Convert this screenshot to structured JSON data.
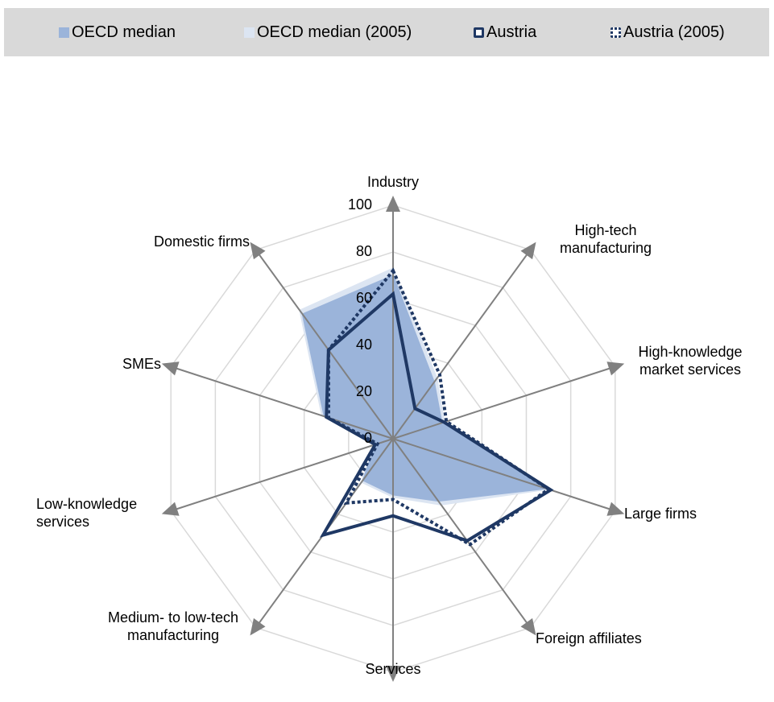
{
  "chart_data": {
    "type": "radar",
    "categories": [
      "Industry",
      "High-tech manufacturing",
      "High-knowledge market services",
      "Large firms",
      "Foreign affiliates",
      "Services",
      "Medium- to low-tech manufacturing",
      "Low-knowledge services",
      "SMEs",
      "Domestic firms"
    ],
    "series": [
      {
        "name": "OECD median (2005)",
        "color": "#dce5f2",
        "style": "area",
        "values": [
          73,
          32,
          23,
          70,
          35,
          25,
          23,
          8,
          32,
          68
        ]
      },
      {
        "name": "OECD median",
        "color": "#9bb4da",
        "style": "area",
        "values": [
          70,
          30,
          22,
          69,
          33,
          24,
          22,
          8,
          31,
          66
        ]
      },
      {
        "name": "Austria",
        "color": "#1f3864",
        "style": "line",
        "values": [
          62,
          16,
          23,
          71,
          54,
          33,
          51,
          8,
          30,
          47
        ]
      },
      {
        "name": "Austria (2005)",
        "color": "#1f3864",
        "style": "dotted",
        "values": [
          72,
          34,
          24,
          70,
          56,
          26,
          34,
          7,
          29,
          47
        ]
      }
    ],
    "legend_order": [
      1,
      0,
      2,
      3
    ],
    "rlim": [
      0,
      100
    ],
    "rticks": [
      0,
      20,
      40,
      60,
      80,
      100
    ],
    "grid": true
  }
}
